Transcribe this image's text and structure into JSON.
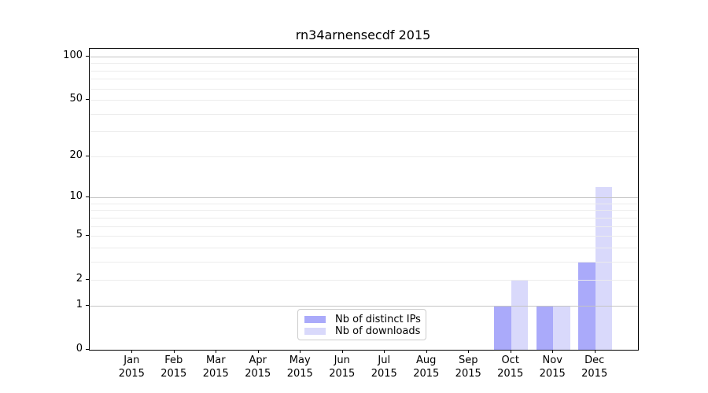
{
  "title": "rn34arnensecdf 2015",
  "colors": {
    "distinct_ips_bar": "#aaaafa",
    "downloads_bar": "#d9d9fb",
    "grid_major": "#c4c4c4",
    "grid_minor": "#ececec",
    "spine": "#000000",
    "legend_border": "#cccccc",
    "text": "#000000"
  },
  "legend": {
    "items": [
      {
        "label": "Nb of distinct IPs",
        "color_key": "distinct_ips_bar"
      },
      {
        "label": "Nb of downloads",
        "color_key": "downloads_bar"
      }
    ]
  },
  "chart_data": {
    "type": "bar",
    "title": "rn34arnensecdf 2015",
    "yscale": "log1p",
    "ylim": [
      0,
      113
    ],
    "grid": "horizontal",
    "yticks": [
      0,
      1,
      2,
      5,
      10,
      20,
      50,
      100
    ],
    "grid_major_values": [
      1,
      10,
      100
    ],
    "grid_minor_values": [
      2,
      3,
      4,
      5,
      6,
      7,
      8,
      9,
      20,
      30,
      40,
      50,
      60,
      70,
      80,
      90
    ],
    "x_tick_labels": [
      {
        "month": "Jan",
        "year": "2015"
      },
      {
        "month": "Feb",
        "year": "2015"
      },
      {
        "month": "Mar",
        "year": "2015"
      },
      {
        "month": "Apr",
        "year": "2015"
      },
      {
        "month": "May",
        "year": "2015"
      },
      {
        "month": "Jun",
        "year": "2015"
      },
      {
        "month": "Jul",
        "year": "2015"
      },
      {
        "month": "Aug",
        "year": "2015"
      },
      {
        "month": "Sep",
        "year": "2015"
      },
      {
        "month": "Oct",
        "year": "2015"
      },
      {
        "month": "Nov",
        "year": "2015"
      },
      {
        "month": "Dec",
        "year": "2015"
      }
    ],
    "series": [
      {
        "name": "Nb of distinct IPs",
        "color_key": "distinct_ips_bar",
        "values": [
          0,
          0,
          0,
          0,
          0,
          0,
          0,
          0,
          0,
          1,
          1,
          3
        ]
      },
      {
        "name": "Nb of downloads",
        "color_key": "downloads_bar",
        "values": [
          0,
          0,
          0,
          0,
          0,
          0,
          0,
          0,
          0,
          2,
          1,
          12
        ]
      }
    ],
    "legend_position": "lower-center"
  }
}
